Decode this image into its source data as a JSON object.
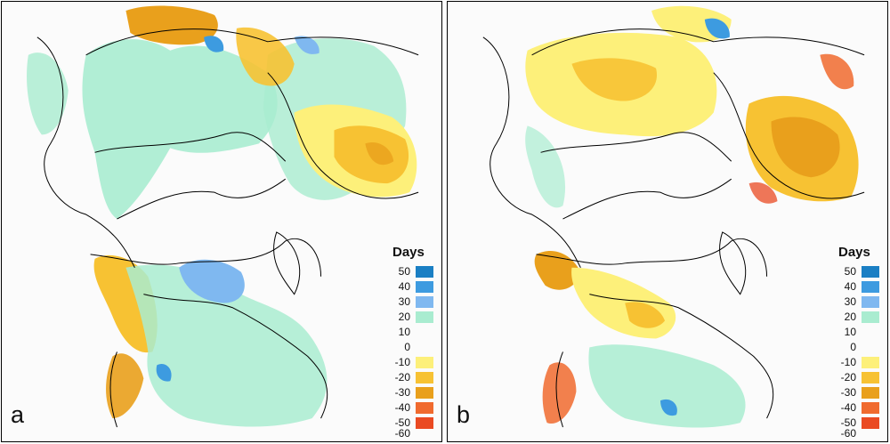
{
  "panels": [
    {
      "id": "a",
      "letter": "a"
    },
    {
      "id": "b",
      "letter": "b"
    }
  ],
  "legend": {
    "title": "Days",
    "entries": [
      {
        "label": "50",
        "color": "#1a7fc4"
      },
      {
        "label": "40",
        "color": "#3d9be0"
      },
      {
        "label": "30",
        "color": "#7fb8f0"
      },
      {
        "label": "20",
        "color": "#a9ecd0"
      },
      {
        "label": "10",
        "color": "#a9ecd0"
      },
      {
        "label": "0",
        "color": "#ffffff"
      },
      {
        "label": "-10",
        "color": "#fdf07a"
      },
      {
        "label": "-20",
        "color": "#f7c233"
      },
      {
        "label": "-30",
        "color": "#e9a01c"
      },
      {
        "label": "-40",
        "color": "#f06a2e"
      },
      {
        "label": "-50",
        "color": "#ea4a22"
      },
      {
        "label": "-60",
        "color": "#ffffff"
      }
    ]
  }
}
